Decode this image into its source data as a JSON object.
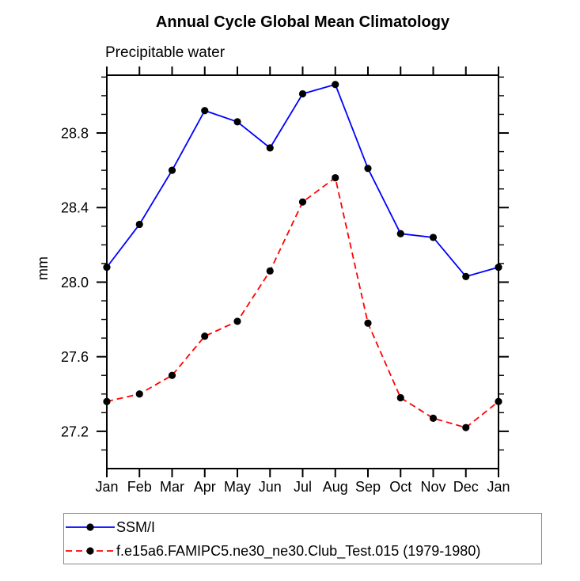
{
  "chart_data": {
    "type": "line",
    "title": "Annual Cycle Global Mean Climatology",
    "subtitle": "Precipitable water",
    "xlabel": "",
    "ylabel": "mm",
    "categories": [
      "Jan",
      "Feb",
      "Mar",
      "Apr",
      "May",
      "Jun",
      "Jul",
      "Aug",
      "Sep",
      "Oct",
      "Nov",
      "Dec",
      "Jan"
    ],
    "series": [
      {
        "name": "SSM/I",
        "color": "#0000ff",
        "line_style": "solid",
        "marker": "filled-circle",
        "marker_color": "#000000",
        "values": [
          28.08,
          28.31,
          28.6,
          28.92,
          28.86,
          28.72,
          29.01,
          29.06,
          28.61,
          28.26,
          28.24,
          28.03,
          28.08
        ]
      },
      {
        "name": "f.e15a6.FAMIPC5.ne30_ne30.Club_Test.015 (1979-1980)",
        "color": "#ff0000",
        "line_style": "dashed",
        "marker": "filled-circle",
        "marker_color": "#000000",
        "values": [
          27.36,
          27.4,
          27.5,
          27.71,
          27.79,
          28.06,
          28.43,
          28.56,
          27.78,
          27.38,
          27.27,
          27.22,
          27.36
        ]
      }
    ],
    "ylim": [
      27.0,
      29.11
    ],
    "yticks_major": [
      27.2,
      27.6,
      28.0,
      28.4,
      28.8
    ],
    "ytick_labels": [
      "27.2",
      "27.6",
      "28.0",
      "28.4",
      "28.8"
    ],
    "ytick_minor_step": 0.1,
    "grid": false,
    "tick_direction": "out",
    "axis_color": "#000000",
    "legend_position": "below-left",
    "legend_border_color": "#888888"
  }
}
